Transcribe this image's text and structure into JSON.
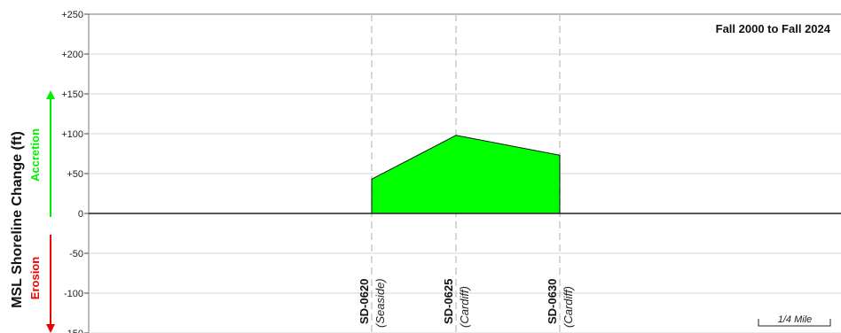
{
  "chart_data": {
    "type": "area",
    "title": "Fall 2000 to Fall 2024",
    "ylabel": "MSL Shoreline Change (ft)",
    "accretion_label": "Accretion",
    "erosion_label": "Erosion",
    "ylim": [
      -150,
      250
    ],
    "y_ticks": [
      {
        "value": 250,
        "label": "+250"
      },
      {
        "value": 200,
        "label": "+200"
      },
      {
        "value": 150,
        "label": "+150"
      },
      {
        "value": 100,
        "label": "+100"
      },
      {
        "value": 50,
        "label": "+50"
      },
      {
        "value": 0,
        "label": "0"
      },
      {
        "value": -50,
        "label": "-50"
      },
      {
        "value": -100,
        "label": "-100"
      },
      {
        "value": -150,
        "label": "-150"
      }
    ],
    "transects": [
      {
        "id": "SD-0620",
        "place": "(Seaside)",
        "value": 43
      },
      {
        "id": "SD-0625",
        "place": "(Cardiff)",
        "value": 98
      },
      {
        "id": "SD-0630",
        "place": "(Cardiff)",
        "value": 73
      }
    ],
    "scale_label": "1/4 Mile",
    "colors": {
      "accretion": "#00ee00",
      "erosion": "#ee0000",
      "area_fill": "#00ff00"
    }
  }
}
